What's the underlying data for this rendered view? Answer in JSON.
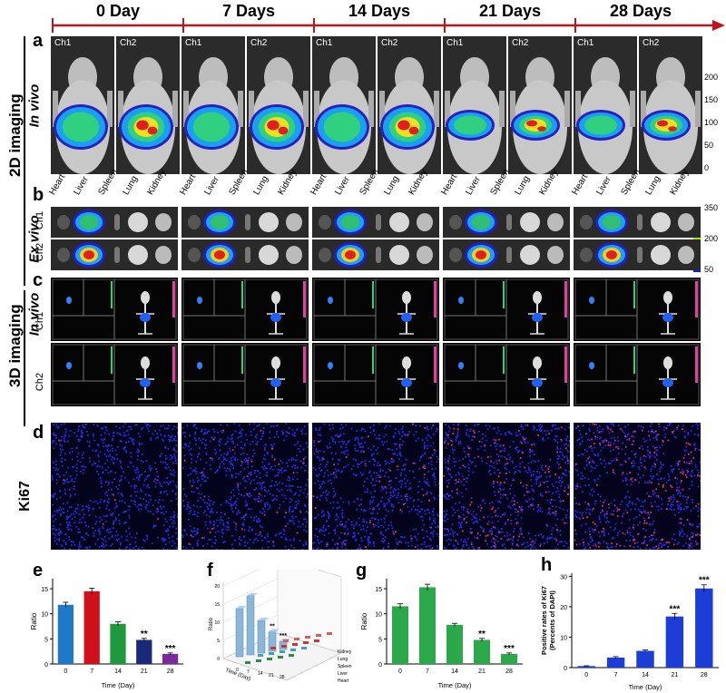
{
  "days": [
    "0 Day",
    "7 Days",
    "14 Days",
    "21 Days",
    "28 Days"
  ],
  "panel_letters": {
    "a": "a",
    "b": "b",
    "c": "c",
    "d": "d",
    "e": "e",
    "f": "f",
    "g": "g",
    "h": "h"
  },
  "labels": {
    "imaging_2d": "2D imaging",
    "imaging_3d": "3D imaging",
    "in_vivo": "In vivo",
    "ex_vivo": "Ex vivo",
    "ki67": "Ki67",
    "ch1": "Ch1",
    "ch2": "Ch2"
  },
  "organs": [
    "Heart",
    "Liver",
    "Spleen",
    "Lung",
    "Kidney"
  ],
  "colorbar_a": [
    "200",
    "150",
    "100",
    "50",
    "0"
  ],
  "colorbar_b": [
    "350",
    "200",
    "50"
  ],
  "colors": {
    "arrow": "#c0141c",
    "bg_dark": "#1a1a1a",
    "ki_blue": "#1e1ec8",
    "ki_red": "#d01e50"
  },
  "chart_data": [
    {
      "id": "e",
      "type": "bar",
      "categories": [
        "0",
        "7",
        "14",
        "21",
        "28"
      ],
      "values": [
        11.8,
        14.5,
        8.0,
        4.8,
        2.0
      ],
      "errors": [
        0.5,
        0.6,
        0.4,
        0.3,
        0.2
      ],
      "colors": [
        "#1f78c8",
        "#d0101a",
        "#1e9a3c",
        "#1a2a78",
        "#7a2a9a"
      ],
      "significance": [
        "",
        "",
        "",
        "**",
        "***"
      ],
      "xlabel": "Time (Day)",
      "ylabel": "Ratio",
      "ylim": [
        0,
        17
      ],
      "yticks": [
        "0",
        "5",
        "10",
        "15"
      ]
    },
    {
      "id": "f",
      "type": "bar",
      "subtype": "3d-bar",
      "xlabel": "Time (Day)",
      "ylabel": "Ratio",
      "zticks": [
        "0",
        "5",
        "10",
        "15",
        "20"
      ],
      "xticks": [
        "0",
        "7",
        "14",
        "21",
        "28"
      ],
      "organs": [
        "Kidney",
        "Lung",
        "Spleen",
        "Liver",
        "Heart"
      ],
      "liver_values": [
        11.8,
        14.5,
        8.0,
        4.8,
        2.0
      ],
      "significance": [
        "",
        "",
        "",
        "**",
        "***"
      ]
    },
    {
      "id": "g",
      "type": "bar",
      "categories": [
        "0",
        "7",
        "14",
        "21",
        "28"
      ],
      "values": [
        11.5,
        15.3,
        7.8,
        4.8,
        2.0
      ],
      "errors": [
        0.5,
        0.6,
        0.3,
        0.3,
        0.2
      ],
      "color": "#2aa84a",
      "significance": [
        "",
        "",
        "",
        "**",
        "***"
      ],
      "xlabel": "Time (Day)",
      "ylabel": "Ratio",
      "ylim": [
        0,
        17
      ],
      "yticks": [
        "0",
        "5",
        "10",
        "15"
      ]
    },
    {
      "id": "h",
      "type": "bar",
      "categories": [
        "0",
        "7",
        "14",
        "21",
        "28"
      ],
      "values": [
        0.5,
        3.3,
        5.5,
        16.8,
        26.0
      ],
      "errors": [
        0.1,
        0.3,
        0.3,
        1.0,
        1.2
      ],
      "color": "#1e3cd8",
      "significance": [
        "",
        "",
        "",
        "***",
        "***"
      ],
      "xlabel": "Time (Day)",
      "ylabel": "Positive rates of Ki67\n(Percents of DAPI)",
      "ylabel_line1": "Positive rates of Ki67",
      "ylabel_line2": "(Percents of DAPI)",
      "ylim": [
        0,
        31
      ],
      "yticks": [
        "0",
        "10",
        "20",
        "30"
      ]
    }
  ]
}
